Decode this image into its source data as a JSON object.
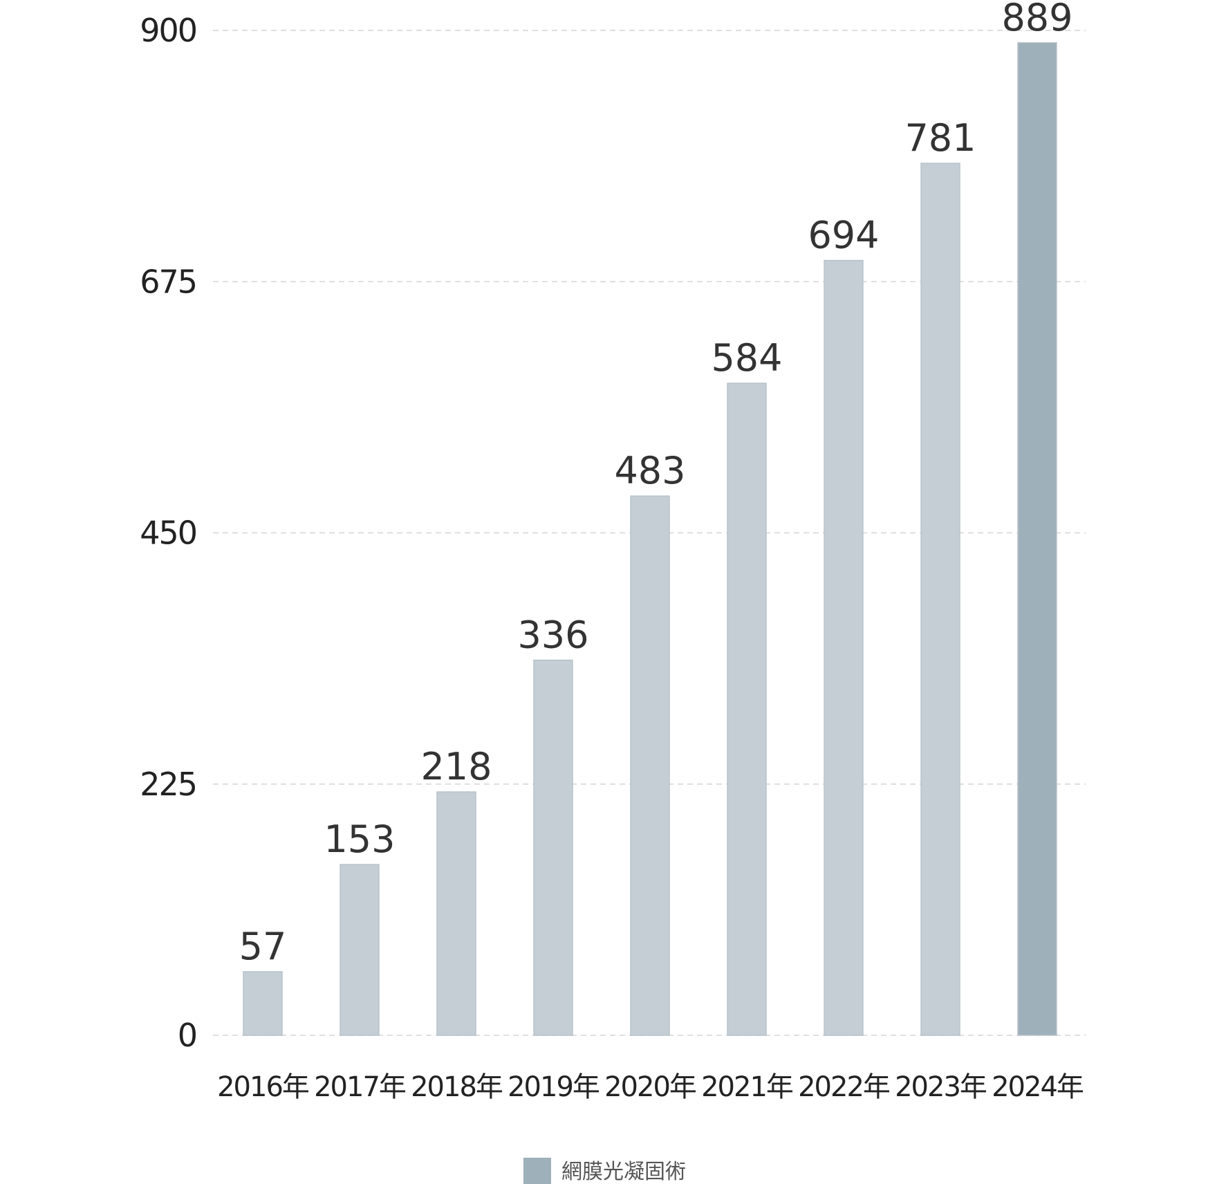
{
  "chart_data": {
    "type": "bar",
    "categories": [
      "2016年",
      "2017年",
      "2018年",
      "2019年",
      "2020年",
      "2021年",
      "2022年",
      "2023年",
      "2024年"
    ],
    "series": [
      {
        "name": "網膜光凝固術",
        "values": [
          57,
          153,
          218,
          336,
          483,
          584,
          694,
          781,
          889
        ]
      }
    ],
    "title": "",
    "xlabel": "",
    "ylabel": "",
    "ylim": [
      0,
      900
    ],
    "yticks": [
      0,
      225,
      450,
      675,
      900
    ],
    "grid": true,
    "legend_position": "bottom-center",
    "colors": {
      "bar": "#c5ced5",
      "bar_border": "#b7c3cb",
      "bar_highlight": "#9eb0b9",
      "legend_swatch": "#9eb0b9",
      "gridline": "#d4d4d4"
    },
    "highlight_index": 8
  }
}
